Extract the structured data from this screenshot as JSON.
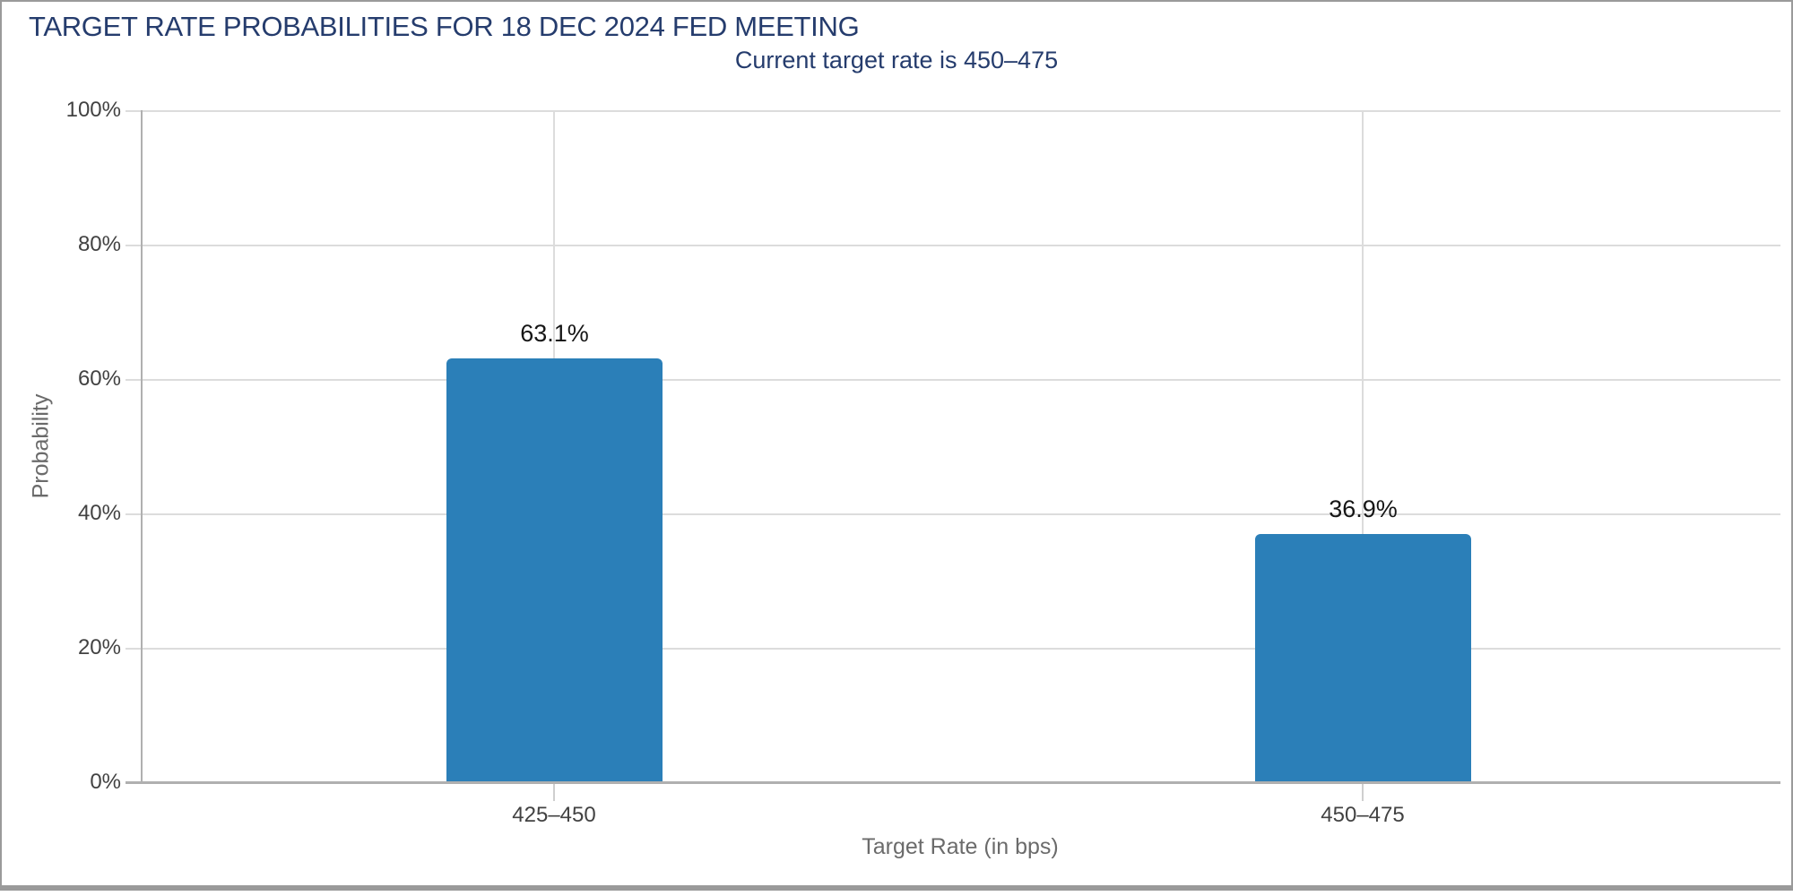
{
  "chart_data": {
    "type": "bar",
    "title": "TARGET RATE PROBABILITIES FOR 18 DEC 2024 FED MEETING",
    "subtitle": "Current target rate is 450–475",
    "categories": [
      "425–450",
      "450–475"
    ],
    "values": [
      63.1,
      36.9
    ],
    "value_labels": [
      "63.1%",
      "36.9%"
    ],
    "xlabel": "Target Rate (in bps)",
    "ylabel": "Probability",
    "ylim": [
      0,
      100
    ],
    "ytick_labels": [
      "100%",
      "80%",
      "60%",
      "40%",
      "20%",
      "0%"
    ],
    "grid": "horizontal gridlines every 20%, vertical gridline at each category center, tick marks outside both axes",
    "legend": null,
    "colors": {
      "bar": "#2b7fb8",
      "title": "#253c6d",
      "gridline": "#dcdcdc",
      "axis_line": "#b0b0b0",
      "tick_label": "#424242",
      "axis_title": "#6b6b6b",
      "value_label": "#161616",
      "border": "#9a9a9a"
    }
  }
}
